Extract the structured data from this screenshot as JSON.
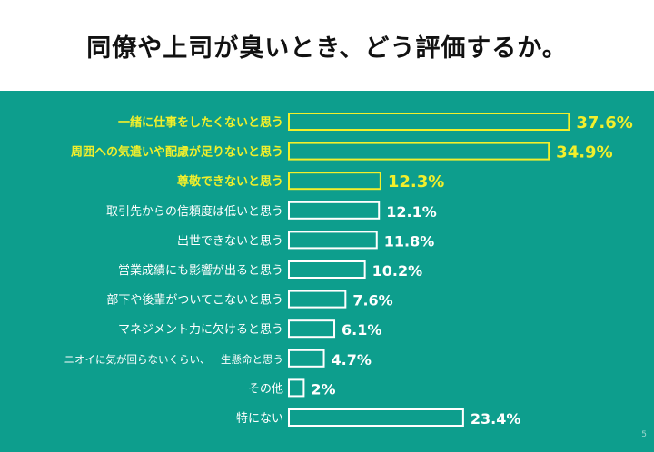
{
  "title": "同僚や上司が臭いとき、どう評価するか。",
  "page_number": "5",
  "colors": {
    "panel": "#0d9e8d",
    "highlight": "#f2ef2b",
    "normal": "#ffffff"
  },
  "chart_data": {
    "type": "bar",
    "orientation": "horizontal",
    "title": "同僚や上司が臭いとき、どう評価するか。",
    "categories": [
      "一緒に仕事をしたくないと思う",
      "周囲への気遣いや配慮が足りないと思う",
      "尊敬できないと思う",
      "取引先からの信頼度は低いと思う",
      "出世できないと思う",
      "営業成績にも影響が出ると思う",
      "部下や後輩がついてこないと思う",
      "マネジメント力に欠けると思う",
      "ニオイに気が回らないくらい、一生懸命と思う",
      "その他",
      "特にない"
    ],
    "values": [
      37.6,
      34.9,
      12.3,
      12.1,
      11.8,
      10.2,
      7.6,
      6.1,
      4.7,
      2,
      23.4
    ],
    "value_labels": [
      "37.6%",
      "34.9%",
      "12.3%",
      "12.1%",
      "11.8%",
      "10.2%",
      "7.6%",
      "6.1%",
      "4.7%",
      "2%",
      "23.4%"
    ],
    "highlighted": [
      true,
      true,
      true,
      false,
      false,
      false,
      false,
      false,
      false,
      false,
      false
    ],
    "unit": "%",
    "grid": false,
    "legend": "none"
  }
}
